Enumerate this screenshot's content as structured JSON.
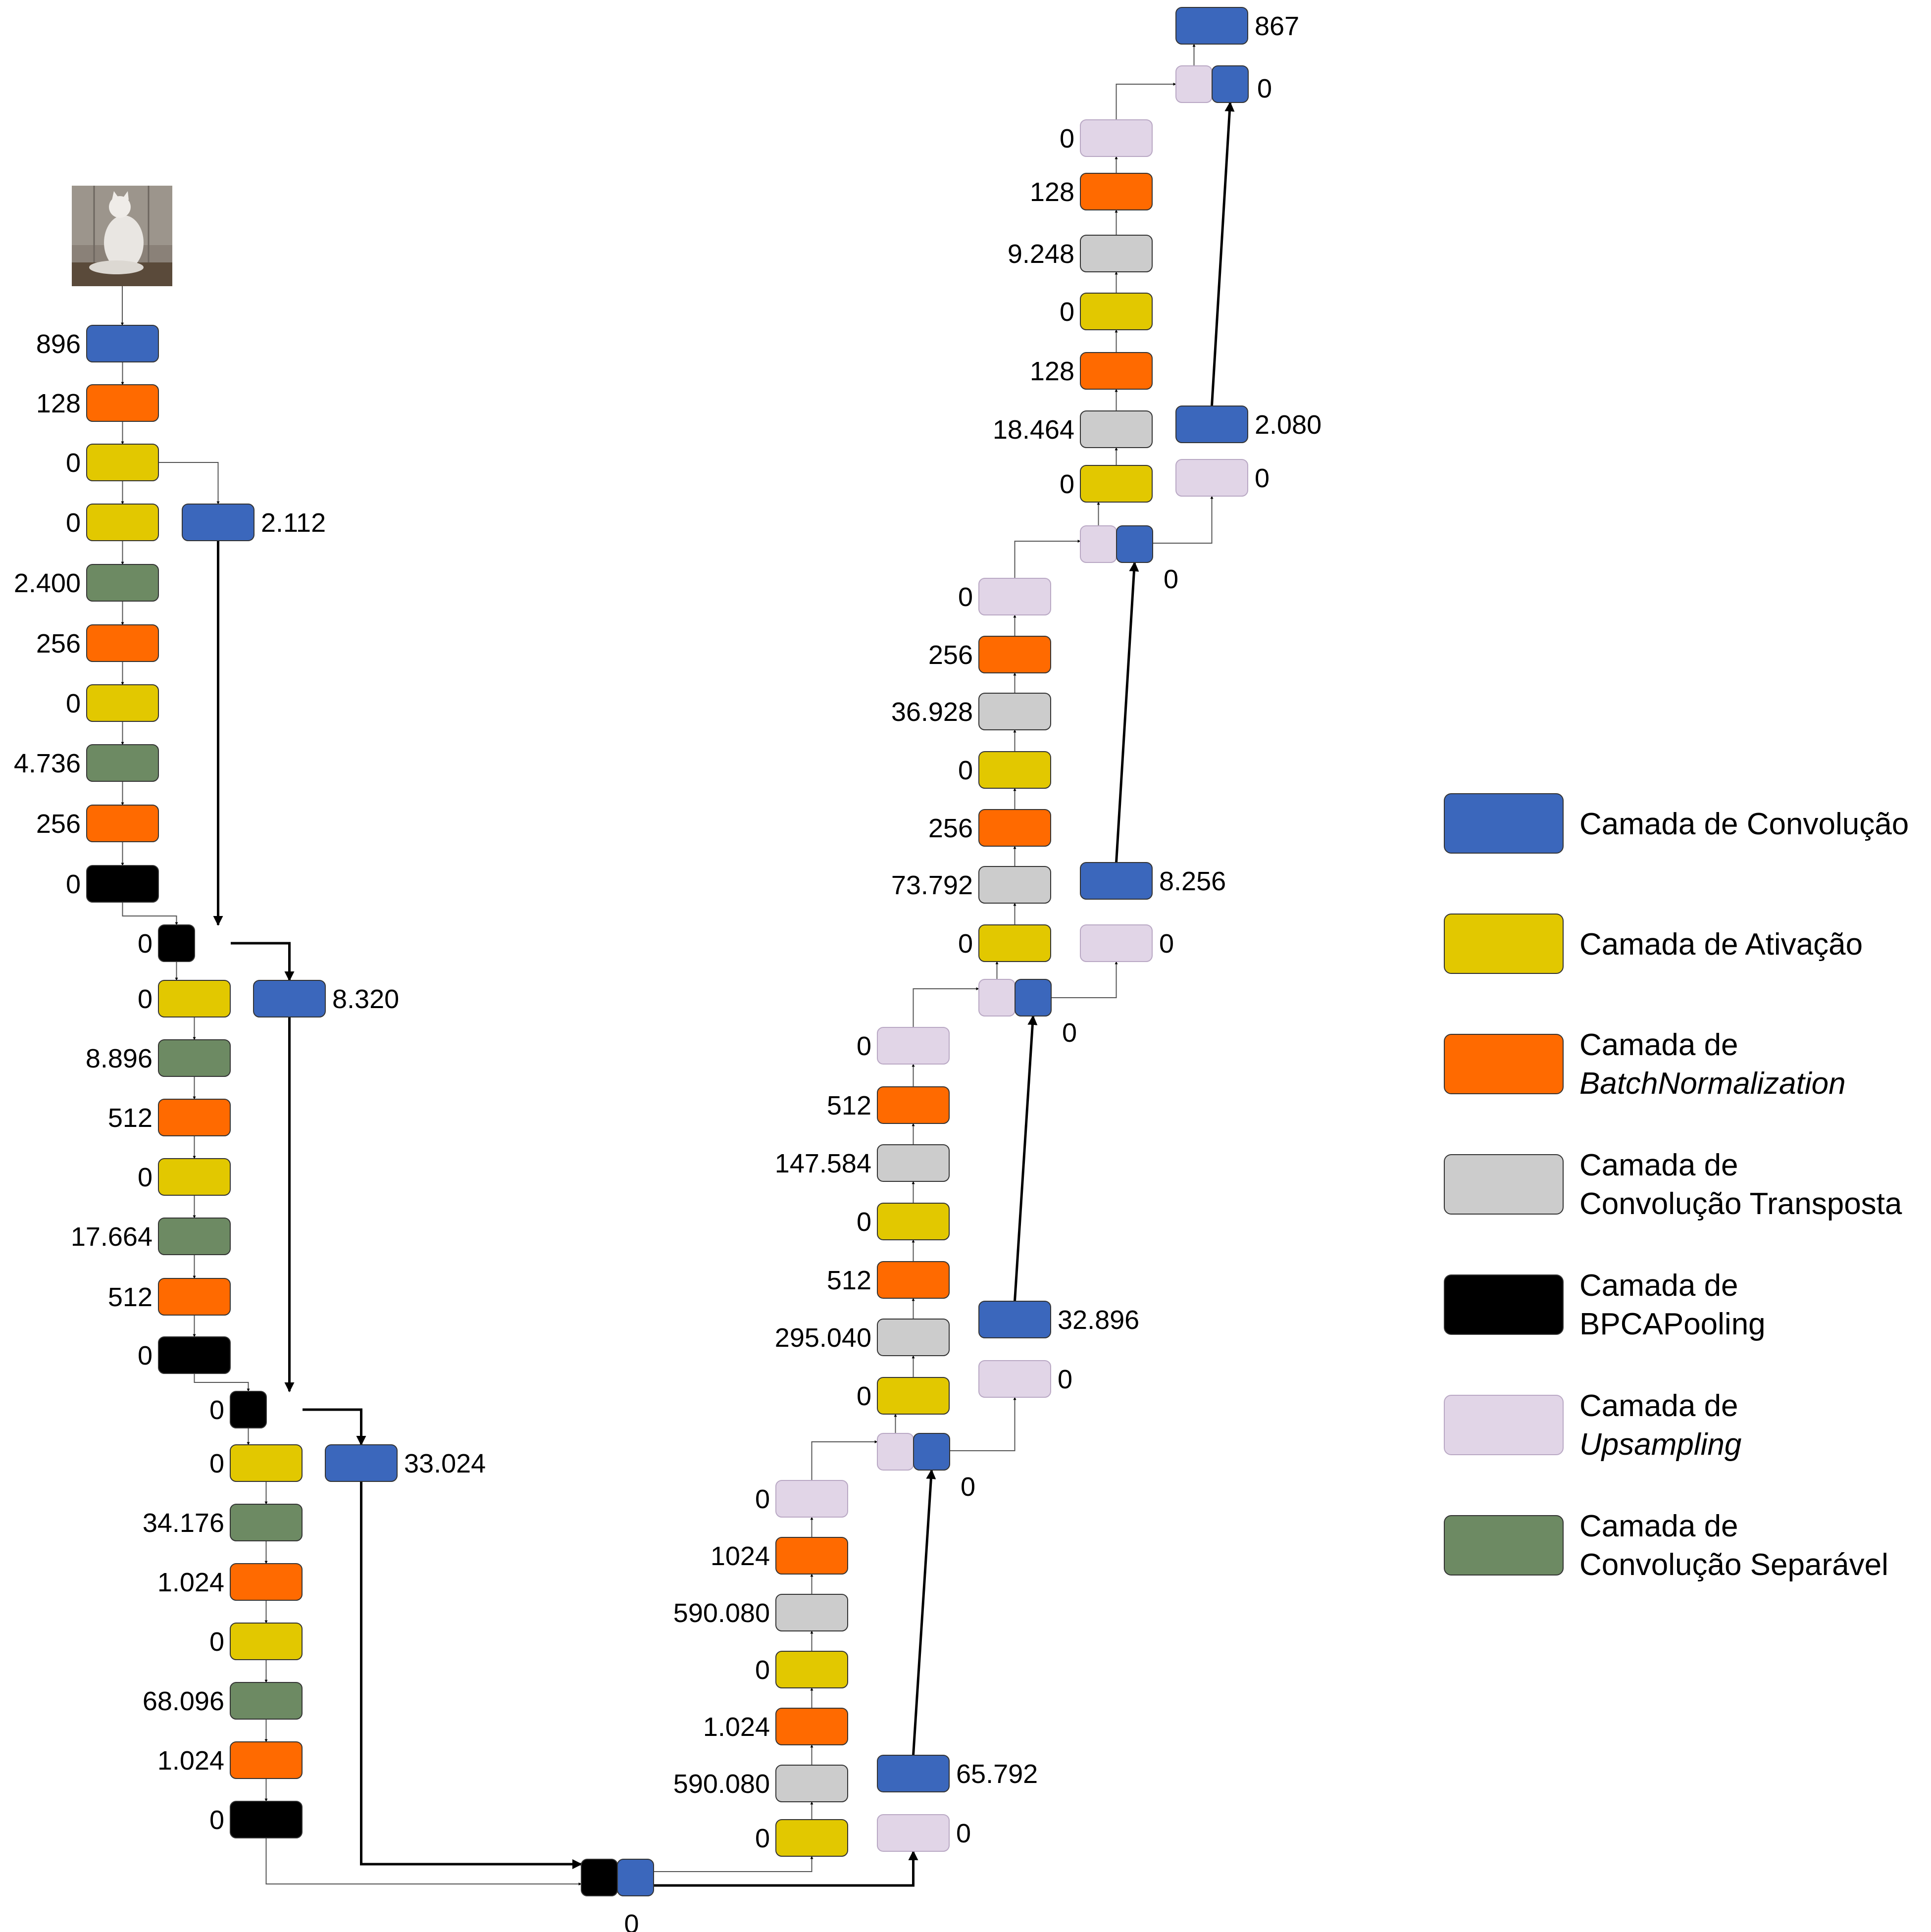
{
  "legend": {
    "conv": [
      "Camada de Convolução"
    ],
    "act": [
      "Camada de Ativação"
    ],
    "bn": [
      "Camada de",
      "BatchNormalization"
    ],
    "tconv": [
      "Camada de",
      "Convolução Transposta"
    ],
    "pool": [
      "Camada de",
      "BPCAPooling"
    ],
    "up": [
      "Camada de",
      "Upsampling"
    ],
    "sep": [
      "Camada de",
      "Convolução Separável"
    ]
  },
  "legend_order": [
    "conv",
    "act",
    "bn",
    "tconv",
    "pool",
    "up",
    "sep"
  ],
  "colors": {
    "conv": "#3b67bc",
    "act": "#e2c800",
    "bn": "#ff6a00",
    "tconv": "#cccccc",
    "pool": "#000000",
    "up": "#e1d5e7",
    "sep": "#6d8a63"
  },
  "input_image": "cat-photo",
  "layers": [
    {
      "id": "e1_conv",
      "type": "conv",
      "params": "896"
    },
    {
      "id": "e1_bn",
      "type": "bn",
      "params": "128"
    },
    {
      "id": "e1_act",
      "type": "act",
      "params": "0"
    },
    {
      "id": "e1_res",
      "type": "conv",
      "params": "2.112"
    },
    {
      "id": "e1_act2",
      "type": "act",
      "params": "0"
    },
    {
      "id": "e1_sep1",
      "type": "sep",
      "params": "2.400"
    },
    {
      "id": "e1_bn2",
      "type": "bn",
      "params": "256"
    },
    {
      "id": "e1_act3",
      "type": "act",
      "params": "0"
    },
    {
      "id": "e1_sep2",
      "type": "sep",
      "params": "4.736"
    },
    {
      "id": "e1_bn3",
      "type": "bn",
      "params": "256"
    },
    {
      "id": "e1_pool",
      "type": "pool",
      "params": "0"
    },
    {
      "id": "m1_pool",
      "type": "pool",
      "params": "0"
    },
    {
      "id": "e2_act",
      "type": "act",
      "params": "0"
    },
    {
      "id": "e2_res",
      "type": "conv",
      "params": "8.320"
    },
    {
      "id": "e2_sep1",
      "type": "sep",
      "params": "8.896"
    },
    {
      "id": "e2_bn1",
      "type": "bn",
      "params": "512"
    },
    {
      "id": "e2_act2",
      "type": "act",
      "params": "0"
    },
    {
      "id": "e2_sep2",
      "type": "sep",
      "params": "17.664"
    },
    {
      "id": "e2_bn2",
      "type": "bn",
      "params": "512"
    },
    {
      "id": "e2_pool",
      "type": "pool",
      "params": "0"
    },
    {
      "id": "m2_pool",
      "type": "pool",
      "params": "0"
    },
    {
      "id": "e3_act",
      "type": "act",
      "params": "0"
    },
    {
      "id": "e3_res",
      "type": "conv",
      "params": "33.024"
    },
    {
      "id": "e3_sep1",
      "type": "sep",
      "params": "34.176"
    },
    {
      "id": "e3_bn1",
      "type": "bn",
      "params": "1.024"
    },
    {
      "id": "e3_act2",
      "type": "act",
      "params": "0"
    },
    {
      "id": "e3_sep2",
      "type": "sep",
      "params": "68.096"
    },
    {
      "id": "e3_bn2",
      "type": "bn",
      "params": "1.024"
    },
    {
      "id": "e3_pool",
      "type": "pool",
      "params": "0"
    },
    {
      "id": "m3",
      "type": "pool",
      "params": "0"
    },
    {
      "id": "d1_act",
      "type": "act",
      "params": "0"
    },
    {
      "id": "d1_tc1",
      "type": "tconv",
      "params": "590.080"
    },
    {
      "id": "d1_bn1",
      "type": "bn",
      "params": "1.024"
    },
    {
      "id": "d1_act2",
      "type": "act",
      "params": "0"
    },
    {
      "id": "d1_tc2",
      "type": "tconv",
      "params": "590.080"
    },
    {
      "id": "d1_bn2",
      "type": "bn",
      "params": "1024"
    },
    {
      "id": "d1_up",
      "type": "up",
      "params": "0"
    },
    {
      "id": "d1_rup",
      "type": "up",
      "params": "0"
    },
    {
      "id": "d1_rconv",
      "type": "conv",
      "params": "65.792"
    },
    {
      "id": "m4",
      "type": "up",
      "params": "0"
    },
    {
      "id": "d2_act",
      "type": "act",
      "params": "0"
    },
    {
      "id": "d2_tc1",
      "type": "tconv",
      "params": "295.040"
    },
    {
      "id": "d2_bn1",
      "type": "bn",
      "params": "512"
    },
    {
      "id": "d2_act2",
      "type": "act",
      "params": "0"
    },
    {
      "id": "d2_tc2",
      "type": "tconv",
      "params": "147.584"
    },
    {
      "id": "d2_bn2",
      "type": "bn",
      "params": "512"
    },
    {
      "id": "d2_up",
      "type": "up",
      "params": "0"
    },
    {
      "id": "d2_rup",
      "type": "up",
      "params": "0"
    },
    {
      "id": "d2_rconv",
      "type": "conv",
      "params": "32.896"
    },
    {
      "id": "m5",
      "type": "up",
      "params": "0"
    },
    {
      "id": "d3_act",
      "type": "act",
      "params": "0"
    },
    {
      "id": "d3_tc1",
      "type": "tconv",
      "params": "73.792"
    },
    {
      "id": "d3_bn1",
      "type": "bn",
      "params": "256"
    },
    {
      "id": "d3_act2",
      "type": "act",
      "params": "0"
    },
    {
      "id": "d3_tc2",
      "type": "tconv",
      "params": "36.928"
    },
    {
      "id": "d3_bn2",
      "type": "bn",
      "params": "256"
    },
    {
      "id": "d3_up",
      "type": "up",
      "params": "0"
    },
    {
      "id": "d3_rup",
      "type": "up",
      "params": "0"
    },
    {
      "id": "d3_rconv",
      "type": "conv",
      "params": "8.256"
    },
    {
      "id": "m6",
      "type": "up",
      "params": "0"
    },
    {
      "id": "d4_act",
      "type": "act",
      "params": "0"
    },
    {
      "id": "d4_tc1",
      "type": "tconv",
      "params": "18.464"
    },
    {
      "id": "d4_bn1",
      "type": "bn",
      "params": "128"
    },
    {
      "id": "d4_act2",
      "type": "act",
      "params": "0"
    },
    {
      "id": "d4_tc2",
      "type": "tconv",
      "params": "9.248"
    },
    {
      "id": "d4_bn2",
      "type": "bn",
      "params": "128"
    },
    {
      "id": "d4_up",
      "type": "up",
      "params": "0"
    },
    {
      "id": "d4_rup",
      "type": "up",
      "params": "0"
    },
    {
      "id": "d4_rconv",
      "type": "conv",
      "params": "2.080"
    },
    {
      "id": "m7",
      "type": "up",
      "params": "0"
    },
    {
      "id": "out_conv",
      "type": "conv",
      "params": "867"
    }
  ]
}
